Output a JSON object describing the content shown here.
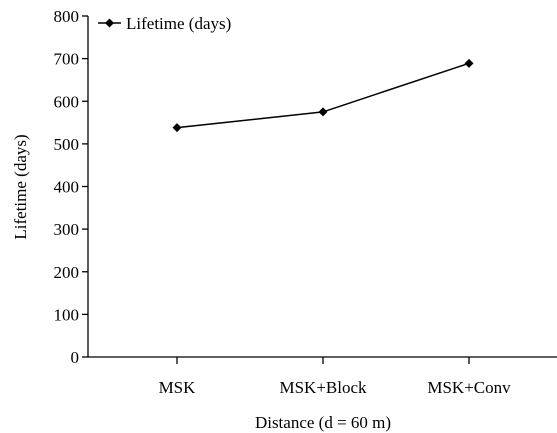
{
  "chart_data": {
    "type": "line",
    "title": "",
    "xlabel": "Distance (d = 60 m)",
    "ylabel": "Lifetime (days)",
    "categories": [
      "MSK",
      "MSK+Block",
      "MSK+Conv"
    ],
    "series": [
      {
        "name": "Lifetime (days)",
        "values": [
          538,
          575,
          689
        ],
        "color": "#000000",
        "marker": "diamond"
      }
    ],
    "ylim": [
      0,
      800
    ],
    "yticks": [
      0,
      100,
      200,
      300,
      400,
      500,
      600,
      700,
      800
    ],
    "grid": false,
    "legend_position": "top-left"
  }
}
